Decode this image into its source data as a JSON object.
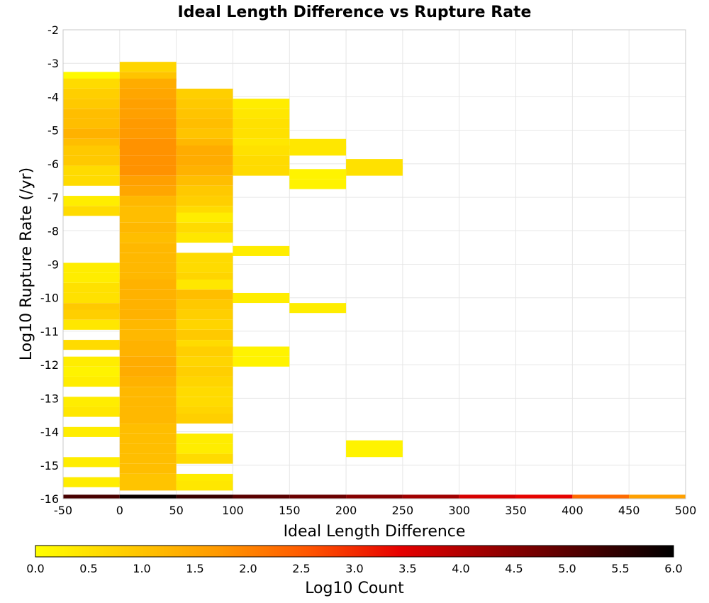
{
  "chart_data": {
    "type": "heatmap",
    "title": "Ideal Length Difference vs Rupture Rate",
    "xlabel": "Ideal Length Difference",
    "ylabel": "Log10 Rupture Rate (/yr)",
    "xlim": [
      -50,
      500
    ],
    "ylim": [
      -16,
      -2
    ],
    "x_ticks": [
      "-50",
      "0",
      "50",
      "100",
      "150",
      "200",
      "250",
      "300",
      "350",
      "400",
      "450",
      "500"
    ],
    "y_ticks": [
      "-2",
      "-3",
      "-4",
      "-5",
      "-6",
      "-7",
      "-8",
      "-9",
      "-10",
      "-11",
      "-12",
      "-13",
      "-14",
      "-15",
      "-16"
    ],
    "grid": true,
    "colorbar": {
      "label": "Log10 Count",
      "range": [
        0,
        6
      ],
      "ticks": [
        "0.0",
        "0.5",
        "1.0",
        "1.5",
        "2.0",
        "2.5",
        "3.0",
        "3.5",
        "4.0",
        "4.5",
        "5.0",
        "5.5",
        "6.0"
      ],
      "colors": [
        "#ffff00",
        "#ffcc00",
        "#ff9900",
        "#ff5500",
        "#e60000",
        "#990000",
        "#4d0000",
        "#000000"
      ]
    },
    "bin_width_x": 50,
    "bin_height_y": 0.2857,
    "cells": [
      [
        -50,
        -3.4,
        0.1
      ],
      [
        -50,
        -3.6,
        0.6
      ],
      [
        -50,
        -3.9,
        0.8
      ],
      [
        -50,
        -4.2,
        0.9
      ],
      [
        -50,
        -4.5,
        1.1
      ],
      [
        -50,
        -4.8,
        1.1
      ],
      [
        -50,
        -5.1,
        1.3
      ],
      [
        -50,
        -5.4,
        1.1
      ],
      [
        -50,
        -5.6,
        0.9
      ],
      [
        -50,
        -5.9,
        0.9
      ],
      [
        -50,
        -6.2,
        0.6
      ],
      [
        -50,
        -6.5,
        0.6
      ],
      [
        -50,
        -7.1,
        0.3
      ],
      [
        -50,
        -7.4,
        0.6
      ],
      [
        -50,
        -9.1,
        0.3
      ],
      [
        -50,
        -9.4,
        0.3
      ],
      [
        -50,
        -9.7,
        0.5
      ],
      [
        -50,
        -10.0,
        0.5
      ],
      [
        -50,
        -10.3,
        0.9
      ],
      [
        -50,
        -10.5,
        0.8
      ],
      [
        -50,
        -10.8,
        0.4
      ],
      [
        -50,
        -11.4,
        0.6
      ],
      [
        -50,
        -11.9,
        0.3
      ],
      [
        -50,
        -12.2,
        0.2
      ],
      [
        -50,
        -12.5,
        0.3
      ],
      [
        -50,
        -13.1,
        0.3
      ],
      [
        -50,
        -13.4,
        0.4
      ],
      [
        -50,
        -14.0,
        0.3
      ],
      [
        -50,
        -14.9,
        0.3
      ],
      [
        -50,
        -15.5,
        0.3
      ],
      [
        0,
        -3.1,
        0.7
      ],
      [
        0,
        -3.4,
        1.0
      ],
      [
        0,
        -3.6,
        1.4
      ],
      [
        0,
        -3.9,
        1.5
      ],
      [
        0,
        -4.2,
        1.6
      ],
      [
        0,
        -4.5,
        1.6
      ],
      [
        0,
        -4.8,
        1.7
      ],
      [
        0,
        -5.1,
        1.7
      ],
      [
        0,
        -5.4,
        1.8
      ],
      [
        0,
        -5.6,
        1.8
      ],
      [
        0,
        -5.9,
        1.8
      ],
      [
        0,
        -6.2,
        1.8
      ],
      [
        0,
        -6.5,
        1.6
      ],
      [
        0,
        -6.8,
        1.5
      ],
      [
        0,
        -7.1,
        1.2
      ],
      [
        0,
        -7.4,
        1.1
      ],
      [
        0,
        -7.6,
        1.1
      ],
      [
        0,
        -7.9,
        1.2
      ],
      [
        0,
        -8.2,
        1.1
      ],
      [
        0,
        -8.5,
        1.2
      ],
      [
        0,
        -8.8,
        1.2
      ],
      [
        0,
        -9.1,
        1.2
      ],
      [
        0,
        -9.4,
        1.2
      ],
      [
        0,
        -9.6,
        1.3
      ],
      [
        0,
        -9.9,
        1.3
      ],
      [
        0,
        -10.2,
        1.3
      ],
      [
        0,
        -10.5,
        1.3
      ],
      [
        0,
        -10.8,
        1.2
      ],
      [
        0,
        -11.1,
        1.2
      ],
      [
        0,
        -11.4,
        1.3
      ],
      [
        0,
        -11.6,
        1.3
      ],
      [
        0,
        -11.9,
        1.4
      ],
      [
        0,
        -12.2,
        1.4
      ],
      [
        0,
        -12.5,
        1.3
      ],
      [
        0,
        -12.8,
        1.2
      ],
      [
        0,
        -13.1,
        1.2
      ],
      [
        0,
        -13.4,
        1.2
      ],
      [
        0,
        -13.6,
        1.2
      ],
      [
        0,
        -13.9,
        1.1
      ],
      [
        0,
        -14.2,
        1.1
      ],
      [
        0,
        -14.5,
        1.1
      ],
      [
        0,
        -14.8,
        1.1
      ],
      [
        0,
        -15.1,
        1.1
      ],
      [
        0,
        -15.4,
        1.0
      ],
      [
        0,
        -15.6,
        1.0
      ],
      [
        50,
        -3.9,
        0.8
      ],
      [
        50,
        -4.2,
        0.9
      ],
      [
        50,
        -4.5,
        1.0
      ],
      [
        50,
        -4.8,
        1.1
      ],
      [
        50,
        -5.1,
        1.0
      ],
      [
        50,
        -5.4,
        1.2
      ],
      [
        50,
        -5.6,
        1.4
      ],
      [
        50,
        -5.9,
        1.4
      ],
      [
        50,
        -6.2,
        1.3
      ],
      [
        50,
        -6.5,
        1.1
      ],
      [
        50,
        -6.8,
        0.9
      ],
      [
        50,
        -7.1,
        0.8
      ],
      [
        50,
        -7.4,
        0.6
      ],
      [
        50,
        -7.6,
        0.3
      ],
      [
        50,
        -7.9,
        0.6
      ],
      [
        50,
        -8.2,
        0.4
      ],
      [
        50,
        -8.8,
        0.6
      ],
      [
        50,
        -9.1,
        0.6
      ],
      [
        50,
        -9.4,
        0.7
      ],
      [
        50,
        -9.6,
        0.4
      ],
      [
        50,
        -9.9,
        1.1
      ],
      [
        50,
        -10.2,
        0.9
      ],
      [
        50,
        -10.5,
        0.8
      ],
      [
        50,
        -10.8,
        0.7
      ],
      [
        50,
        -11.1,
        0.9
      ],
      [
        50,
        -11.4,
        0.6
      ],
      [
        50,
        -11.6,
        0.8
      ],
      [
        50,
        -11.9,
        0.7
      ],
      [
        50,
        -12.2,
        0.8
      ],
      [
        50,
        -12.5,
        0.7
      ],
      [
        50,
        -12.8,
        0.6
      ],
      [
        50,
        -13.1,
        0.6
      ],
      [
        50,
        -13.4,
        0.7
      ],
      [
        50,
        -13.6,
        0.8
      ],
      [
        50,
        -14.2,
        0.3
      ],
      [
        50,
        -14.5,
        0.3
      ],
      [
        50,
        -14.8,
        0.6
      ],
      [
        50,
        -15.4,
        0.3
      ],
      [
        50,
        -15.6,
        0.4
      ],
      [
        100,
        -4.2,
        0.3
      ],
      [
        100,
        -4.5,
        0.4
      ],
      [
        100,
        -4.8,
        0.5
      ],
      [
        100,
        -5.1,
        0.5
      ],
      [
        100,
        -5.4,
        0.4
      ],
      [
        100,
        -5.6,
        0.5
      ],
      [
        100,
        -5.9,
        0.6
      ],
      [
        100,
        -6.2,
        0.6
      ],
      [
        100,
        -8.6,
        0.3
      ],
      [
        100,
        -10.0,
        0.3
      ],
      [
        100,
        -11.6,
        0.2
      ],
      [
        100,
        -11.9,
        0.2
      ],
      [
        150,
        -5.4,
        0.4
      ],
      [
        150,
        -5.6,
        0.4
      ],
      [
        150,
        -6.3,
        0.2
      ],
      [
        150,
        -6.6,
        0.2
      ],
      [
        150,
        -10.3,
        0.3
      ],
      [
        200,
        -6.0,
        0.5
      ],
      [
        200,
        -6.2,
        0.5
      ],
      [
        200,
        -14.4,
        0.2
      ],
      [
        200,
        -14.6,
        0.2
      ]
    ],
    "bottom_row": {
      "y": -16,
      "values": [
        [
          -50,
          5.2
        ],
        [
          0,
          5.9
        ],
        [
          50,
          5.4
        ],
        [
          100,
          5.0
        ],
        [
          150,
          4.8
        ],
        [
          200,
          4.5
        ],
        [
          250,
          4.2
        ],
        [
          300,
          3.6
        ],
        [
          350,
          3.4
        ],
        [
          400,
          2.3
        ],
        [
          450,
          1.6
        ]
      ]
    }
  }
}
